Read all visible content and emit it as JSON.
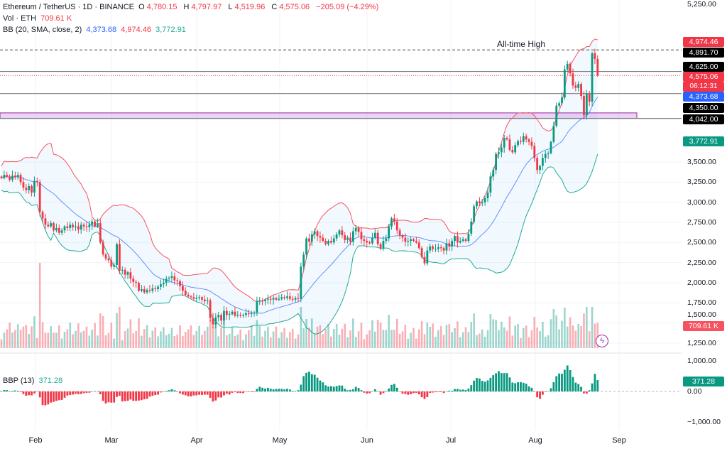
{
  "header": {
    "symbol": "Ethereum / TetherUS · 1D · BINANCE",
    "o_label": "O",
    "o": "4,780.15",
    "h_label": "H",
    "h": "4,797.97",
    "l_label": "L",
    "l": "4,519.96",
    "c_label": "C",
    "c": "4,575.06",
    "change": "−205.09 (−4.29%)",
    "vol_label": "Vol · ETH",
    "vol": "709.61 K",
    "bb_label": "BB (20, SMA, close, 2)",
    "bb_basis": "4,373.68",
    "bb_upper": "4,974.46",
    "bb_lower": "3,772.91",
    "bbp_label": "BBP (13)",
    "bbp_value": "371.28"
  },
  "annotations": {
    "ath_label": "All-time High"
  },
  "price_tags": [
    {
      "text": "4,974.46",
      "color": "#f23645"
    },
    {
      "text": "4,891.70",
      "color": "#000000"
    },
    {
      "text": "4,625.00",
      "color": "#000000"
    },
    {
      "text": "4,575.06",
      "color": "#f23645"
    },
    {
      "text": "06:12:31",
      "color": "#f23645"
    },
    {
      "text": "4,373.68",
      "color": "#2962ff"
    },
    {
      "text": "4,350.00",
      "color": "#000000"
    },
    {
      "text": "4,042.00",
      "color": "#000000"
    },
    {
      "text": "3,772.91",
      "color": "#089981"
    },
    {
      "text": "709.61 K",
      "color": "#f7525f"
    },
    {
      "text": "371.28",
      "color": "#089981"
    }
  ],
  "colors": {
    "up": "#089981",
    "down": "#f23645",
    "bb_upper": "#f7525f",
    "bb_lower": "#22ab94",
    "bb_basis": "#2962ff",
    "zone": "#9c27b0"
  },
  "chart_data": {
    "type": "candlestick",
    "ylim": [
      1250,
      5250
    ],
    "y_ticks": [
      "5,250.00",
      "3,500.00",
      "3,250.00",
      "3,000.00",
      "2,750.00",
      "2,500.00",
      "2,250.00",
      "2,000.00",
      "1,750.00",
      "1,500.00",
      "1,250.00"
    ],
    "y_tick_values": [
      5250,
      3500,
      3250,
      3000,
      2750,
      2500,
      2250,
      2000,
      1750,
      1500,
      1250
    ],
    "x_ticks": [
      "Feb",
      "Mar",
      "Apr",
      "May",
      "Jun",
      "Jul",
      "Aug",
      "Sep"
    ],
    "levels": [
      {
        "value": 4891.7,
        "style": "dashed",
        "label": "All-time High"
      },
      {
        "value": 4625.0,
        "style": "solid"
      },
      {
        "value": 4350.0,
        "style": "solid"
      },
      {
        "value": 4042.0,
        "style": "solid"
      },
      {
        "value": 4575.06,
        "style": "dotted-red"
      }
    ],
    "zone": [
      4042,
      4110
    ],
    "months": [
      {
        "month": "Jan",
        "start_day": 19,
        "closes": [
          3300,
          3340,
          3320,
          3280,
          3330,
          3310,
          3340,
          3250,
          3180,
          3150,
          3200,
          3120,
          3260
        ]
      },
      {
        "month": "Feb",
        "start_day": 1,
        "closes": [
          3250,
          2880,
          2800,
          2720,
          2700,
          2740,
          2650,
          2680,
          2620,
          2650,
          2700,
          2680,
          2720,
          2690,
          2700,
          2660,
          2720,
          2700,
          2690,
          2720,
          2760,
          2700,
          2740,
          2500,
          2350,
          2300,
          2280,
          2200
        ]
      },
      {
        "month": "Mar",
        "start_day": 1,
        "closes": [
          2220,
          2480,
          2150,
          2160,
          2100,
          2130,
          2050,
          2010,
          2000,
          1900,
          1920,
          1880,
          1910,
          1900,
          1930,
          1920,
          1950,
          1980,
          2000,
          2050,
          2060,
          2080,
          2030,
          2020,
          1960,
          1900,
          1850,
          1830,
          1820,
          1800,
          1810
        ]
      },
      {
        "month": "Apr",
        "start_day": 1,
        "closes": [
          1820,
          1790,
          1770,
          1780,
          1560,
          1480,
          1570,
          1600,
          1530,
          1650,
          1600,
          1610,
          1640,
          1590,
          1600,
          1590,
          1600,
          1620,
          1610,
          1620,
          1630,
          1770,
          1780,
          1770,
          1790,
          1800,
          1790,
          1810,
          1790,
          1800
        ]
      },
      {
        "month": "May",
        "start_day": 1,
        "closes": [
          1820,
          1810,
          1830,
          1800,
          1790,
          1810,
          1800,
          2200,
          2350,
          2550,
          2510,
          2600,
          2640,
          2580,
          2560,
          2520,
          2480,
          2520,
          2500,
          2550,
          2600,
          2650,
          2590,
          2530,
          2560,
          2510,
          2640,
          2680,
          2630,
          2540,
          2520
        ]
      },
      {
        "month": "Jun",
        "start_day": 1,
        "closes": [
          2500,
          2490,
          2560,
          2620,
          2480,
          2430,
          2520,
          2550,
          2700,
          2800,
          2760,
          2650,
          2590,
          2560,
          2510,
          2520,
          2540,
          2520,
          2500,
          2430,
          2320,
          2240,
          2400,
          2450,
          2420,
          2420,
          2440,
          2430,
          2400,
          2490
        ]
      },
      {
        "month": "Jul",
        "start_day": 1,
        "closes": [
          2450,
          2520,
          2580,
          2500,
          2520,
          2540,
          2520,
          2610,
          2760,
          2950,
          3010,
          2990,
          3000,
          3050,
          3120,
          3320,
          3400,
          3600,
          3620,
          3680,
          3800,
          3780,
          3650,
          3620,
          3710,
          3760,
          3750,
          3820,
          3780,
          3750,
          3700
        ]
      },
      {
        "month": "Aug",
        "start_day": 1,
        "closes": [
          3550,
          3400,
          3450,
          3550,
          3600,
          3610,
          3750,
          3950,
          4200,
          4230,
          4300,
          4650,
          4720,
          4600,
          4450,
          4420,
          4470,
          4320,
          4080,
          4350,
          4250,
          4850,
          4780,
          4575.06
        ]
      }
    ],
    "bbp": {
      "ylim": [
        -1000,
        1000
      ],
      "y_ticks": [
        "1,000.00",
        "0.00",
        "−1,000.00"
      ],
      "y_tick_values": [
        1000,
        0,
        -1000
      ],
      "last": 371.28
    }
  }
}
